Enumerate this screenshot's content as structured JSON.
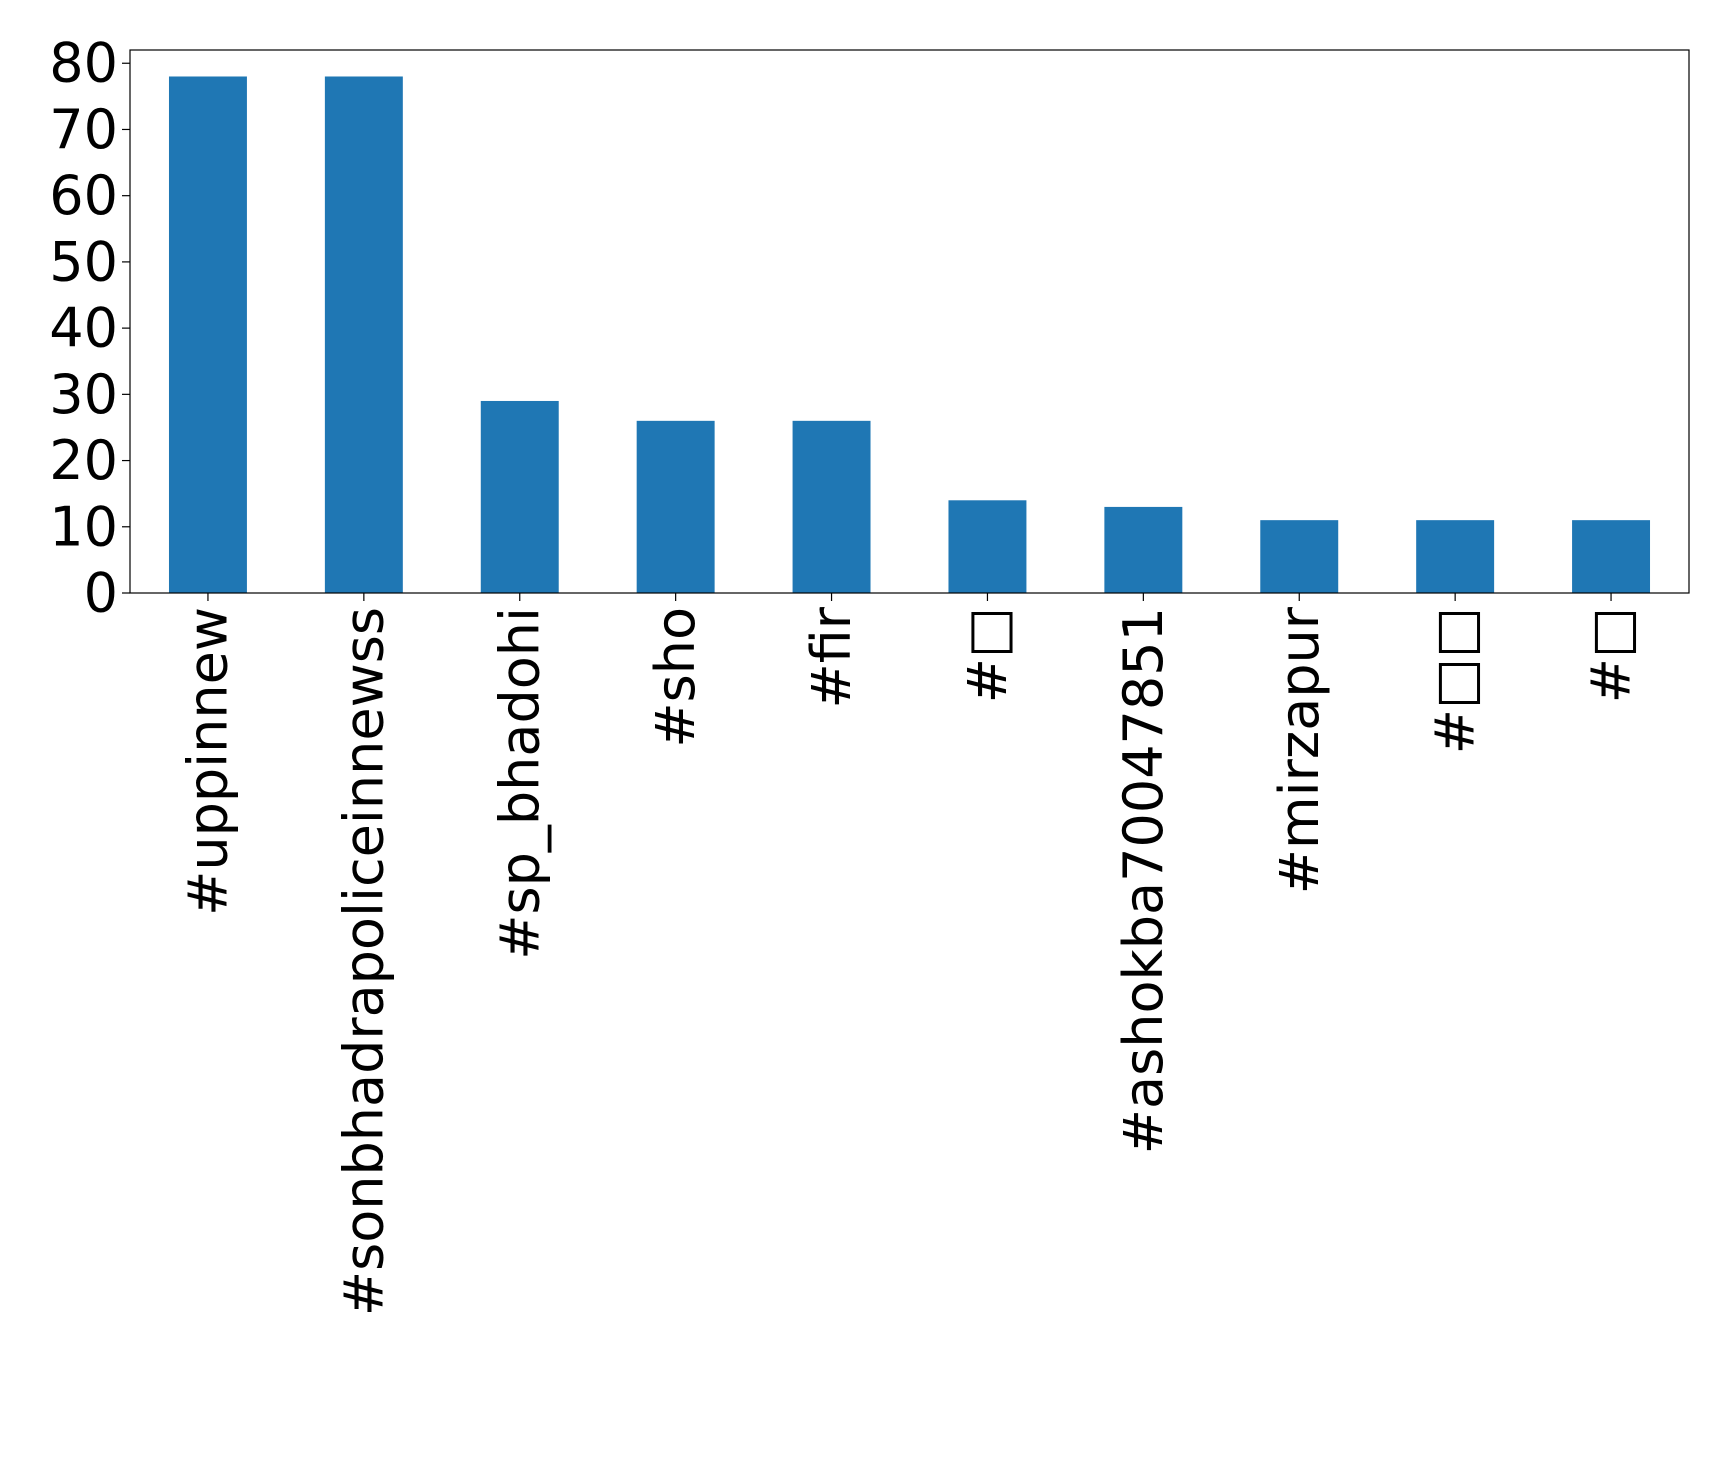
{
  "chart_data": {
    "type": "bar",
    "title": "",
    "xlabel": "",
    "ylabel": "",
    "categories": [
      "#uppinnew",
      "#sonbhadrapoliceinnewss",
      "#sp_bhadohi",
      "#sho",
      "#fir",
      "#□",
      "#ashokba70047851",
      "#mirzapur",
      "#□□",
      "#□"
    ],
    "values": [
      78,
      78,
      29,
      26,
      26,
      14,
      13,
      11,
      11,
      11
    ],
    "ylim": [
      0,
      82
    ],
    "yticks": [
      0,
      10,
      20,
      30,
      40,
      50,
      60,
      70,
      80
    ],
    "ytick_labels": [
      "0",
      "10",
      "20",
      "30",
      "40",
      "50",
      "60",
      "70",
      "80"
    ],
    "grid": false,
    "legend": "none",
    "bar_color": "#1f77b4"
  }
}
